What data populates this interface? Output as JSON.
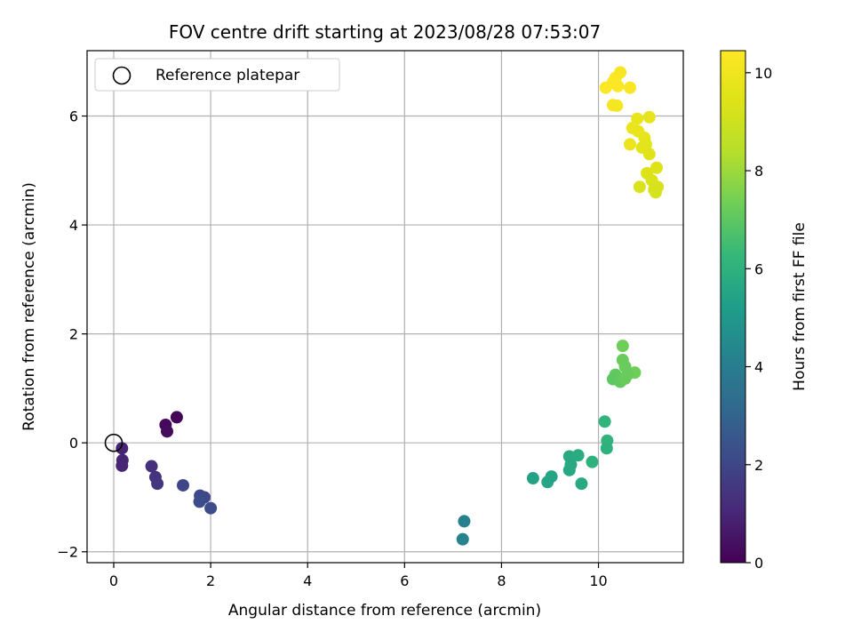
{
  "chart_data": {
    "type": "scatter",
    "title": "FOV centre drift starting at 2023/08/28 07:53:07",
    "xlabel": "Angular distance from reference (arcmin)",
    "ylabel": "Rotation from reference (arcmin)",
    "xlim": [
      -0.55,
      11.75
    ],
    "ylim": [
      -2.2,
      7.2
    ],
    "x_ticks": [
      0,
      2,
      4,
      6,
      8,
      10
    ],
    "y_ticks": [
      -2,
      0,
      2,
      4,
      6
    ],
    "x_tick_labels": [
      "0",
      "2",
      "4",
      "6",
      "8",
      "10"
    ],
    "y_tick_labels": [
      "−2",
      "0",
      "2",
      "4",
      "6"
    ],
    "grid": true,
    "legend": {
      "placement": "top-left",
      "entries": [
        {
          "label": "Reference platepar",
          "marker": "open-circle"
        }
      ]
    },
    "reference_point": {
      "x": 0,
      "y": 0
    },
    "colorbar": {
      "label": "Hours from first FF file",
      "colormap": "viridis",
      "range": [
        0,
        10.45
      ],
      "ticks": [
        0,
        2,
        4,
        6,
        8,
        10
      ],
      "tick_labels": [
        "0",
        "2",
        "4",
        "6",
        "8",
        "10"
      ]
    },
    "points": [
      {
        "x": 0.17,
        "y": -0.1,
        "c": 0.9
      },
      {
        "x": 0.18,
        "y": -0.32,
        "c": 1.0
      },
      {
        "x": 0.17,
        "y": -0.42,
        "c": 1.0
      },
      {
        "x": 1.07,
        "y": 0.33,
        "c": 0.2
      },
      {
        "x": 1.1,
        "y": 0.21,
        "c": 0.3
      },
      {
        "x": 1.3,
        "y": 0.47,
        "c": 0.1
      },
      {
        "x": 0.78,
        "y": -0.43,
        "c": 1.3
      },
      {
        "x": 0.86,
        "y": -0.63,
        "c": 1.4
      },
      {
        "x": 0.9,
        "y": -0.75,
        "c": 1.5
      },
      {
        "x": 1.43,
        "y": -0.78,
        "c": 2.0
      },
      {
        "x": 1.78,
        "y": -0.97,
        "c": 2.1
      },
      {
        "x": 1.87,
        "y": -1.0,
        "c": 2.1
      },
      {
        "x": 1.77,
        "y": -1.08,
        "c": 2.2
      },
      {
        "x": 2.0,
        "y": -1.2,
        "c": 2.2
      },
      {
        "x": 7.23,
        "y": -1.44,
        "c": 4.1
      },
      {
        "x": 7.2,
        "y": -1.77,
        "c": 4.2
      },
      {
        "x": 8.65,
        "y": -0.65,
        "c": 5.4
      },
      {
        "x": 8.95,
        "y": -0.72,
        "c": 5.5
      },
      {
        "x": 9.03,
        "y": -0.62,
        "c": 5.5
      },
      {
        "x": 9.4,
        "y": -0.25,
        "c": 5.7
      },
      {
        "x": 9.4,
        "y": -0.5,
        "c": 5.6
      },
      {
        "x": 9.43,
        "y": -0.4,
        "c": 5.7
      },
      {
        "x": 9.58,
        "y": -0.23,
        "c": 5.8
      },
      {
        "x": 9.65,
        "y": -0.75,
        "c": 5.7
      },
      {
        "x": 9.87,
        "y": -0.35,
        "c": 6.0
      },
      {
        "x": 10.13,
        "y": 0.39,
        "c": 6.1
      },
      {
        "x": 10.18,
        "y": 0.04,
        "c": 6.1
      },
      {
        "x": 10.17,
        "y": -0.1,
        "c": 6.0
      },
      {
        "x": 10.5,
        "y": 1.78,
        "c": 7.3
      },
      {
        "x": 10.5,
        "y": 1.52,
        "c": 7.2
      },
      {
        "x": 10.55,
        "y": 1.4,
        "c": 7.2
      },
      {
        "x": 10.75,
        "y": 1.29,
        "c": 7.3
      },
      {
        "x": 10.35,
        "y": 1.25,
        "c": 7.1
      },
      {
        "x": 10.4,
        "y": 1.2,
        "c": 7.1
      },
      {
        "x": 10.3,
        "y": 1.17,
        "c": 7.0
      },
      {
        "x": 10.45,
        "y": 1.12,
        "c": 7.1
      },
      {
        "x": 10.55,
        "y": 1.18,
        "c": 7.2
      },
      {
        "x": 10.6,
        "y": 1.25,
        "c": 7.2
      },
      {
        "x": 10.15,
        "y": 6.52,
        "c": 10.4
      },
      {
        "x": 10.3,
        "y": 6.62,
        "c": 10.4
      },
      {
        "x": 10.35,
        "y": 6.7,
        "c": 10.4
      },
      {
        "x": 10.45,
        "y": 6.8,
        "c": 10.3
      },
      {
        "x": 10.4,
        "y": 6.55,
        "c": 10.4
      },
      {
        "x": 10.65,
        "y": 6.52,
        "c": 10.3
      },
      {
        "x": 10.3,
        "y": 6.2,
        "c": 10.2
      },
      {
        "x": 10.38,
        "y": 6.19,
        "c": 10.2
      },
      {
        "x": 10.8,
        "y": 5.95,
        "c": 9.8
      },
      {
        "x": 11.05,
        "y": 5.98,
        "c": 9.7
      },
      {
        "x": 10.7,
        "y": 5.78,
        "c": 9.9
      },
      {
        "x": 10.82,
        "y": 5.72,
        "c": 9.8
      },
      {
        "x": 10.95,
        "y": 5.6,
        "c": 9.7
      },
      {
        "x": 10.65,
        "y": 5.48,
        "c": 9.9
      },
      {
        "x": 10.9,
        "y": 5.42,
        "c": 9.6
      },
      {
        "x": 10.98,
        "y": 5.48,
        "c": 9.6
      },
      {
        "x": 11.05,
        "y": 5.3,
        "c": 9.5
      },
      {
        "x": 11.0,
        "y": 4.95,
        "c": 9.4
      },
      {
        "x": 11.2,
        "y": 5.05,
        "c": 9.4
      },
      {
        "x": 11.1,
        "y": 4.82,
        "c": 9.3
      },
      {
        "x": 10.85,
        "y": 4.7,
        "c": 9.3
      },
      {
        "x": 11.15,
        "y": 4.65,
        "c": 9.2
      },
      {
        "x": 11.18,
        "y": 4.6,
        "c": 9.2
      },
      {
        "x": 11.22,
        "y": 4.7,
        "c": 9.2
      }
    ]
  }
}
